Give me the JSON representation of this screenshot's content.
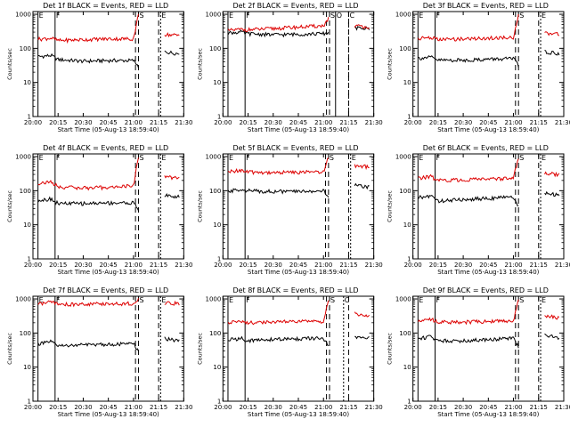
{
  "figure": {
    "background": "#ffffff",
    "colors": {
      "events": "#000000",
      "lld": "#dd0000",
      "axis": "#000000"
    }
  },
  "chart_data": [
    {
      "type": "line",
      "title": "Det 1f BLACK = Events, RED = LLD",
      "xlabel": "Start Time (05-Aug-13 18:59:40)",
      "ylabel": "Counts/sec",
      "x_tick_labels": [
        "20:00",
        "20:15",
        "20:30",
        "20:45",
        "21:00",
        "21:15",
        "21:30"
      ],
      "y_tick_labels": [
        "1",
        "10",
        "100",
        "1000"
      ],
      "y_scale": "log",
      "ylim": [
        1,
        1200
      ],
      "series": [
        {
          "color": "#000000",
          "x": [
            20.0,
            20.18,
            20.25,
            20.5,
            20.75,
            21.0,
            21.05,
            21.3,
            21.45
          ],
          "y": [
            55,
            62,
            47,
            42,
            44,
            44,
            30,
            80,
            70
          ]
        },
        {
          "color": "#dd0000",
          "x": [
            20.0,
            20.18,
            20.25,
            20.5,
            20.75,
            21.0,
            21.05,
            21.1,
            21.45
          ],
          "y": [
            180,
            200,
            170,
            180,
            190,
            190,
            1000,
            280,
            240
          ]
        }
      ],
      "annotations": [
        {
          "x": 20.05,
          "label": "E"
        },
        {
          "x": 20.22,
          "label": "F"
        },
        {
          "x": 21.05,
          "label": "S"
        },
        {
          "x": 21.27,
          "label": "E"
        }
      ]
    },
    {
      "type": "line",
      "title": "Det 2f BLACK = Events, RED = LLD",
      "xlabel": "Start Time (05-Aug-13 18:59:40)",
      "ylabel": "Counts/sec",
      "x_tick_labels": [
        "20:00",
        "20:15",
        "20:30",
        "20:45",
        "21:00",
        "21:15",
        "21:30"
      ],
      "y_tick_labels": [
        "1",
        "10",
        "100",
        "1000"
      ],
      "y_scale": "log",
      "ylim": [
        1,
        1200
      ],
      "series": [
        {
          "color": "#000000",
          "x": [
            20.0,
            20.18,
            20.25,
            20.5,
            20.75,
            21.0,
            21.08,
            21.12,
            21.45
          ],
          "y": [
            280,
            300,
            270,
            250,
            260,
            270,
            300,
            420,
            380
          ]
        },
        {
          "color": "#dd0000",
          "x": [
            20.0,
            20.18,
            20.25,
            20.5,
            20.75,
            21.0,
            21.08,
            21.12,
            21.45
          ],
          "y": [
            320,
            360,
            350,
            380,
            420,
            460,
            1000,
            500,
            430
          ]
        }
      ],
      "annotations": [
        {
          "x": 20.05,
          "label": "E"
        },
        {
          "x": 20.22,
          "label": "F"
        },
        {
          "x": 21.06,
          "label": "S"
        },
        {
          "x": 21.12,
          "label": "O"
        },
        {
          "x": 21.25,
          "label": "C"
        }
      ]
    },
    {
      "type": "line",
      "title": "Det 3f BLACK = Events, RED = LLD",
      "xlabel": "Start Time (05-Aug-13 18:59:40)",
      "ylabel": "Counts/sec",
      "x_tick_labels": [
        "20:00",
        "20:15",
        "20:30",
        "20:45",
        "21:00",
        "21:15",
        "21:30"
      ],
      "y_tick_labels": [
        "1",
        "10",
        "100",
        "1000"
      ],
      "y_scale": "log",
      "ylim": [
        1,
        1200
      ],
      "series": [
        {
          "color": "#000000",
          "x": [
            20.0,
            20.18,
            20.25,
            20.5,
            20.75,
            21.0,
            21.05,
            21.3,
            21.45
          ],
          "y": [
            50,
            55,
            45,
            45,
            48,
            50,
            30,
            80,
            70
          ]
        },
        {
          "color": "#dd0000",
          "x": [
            20.0,
            20.18,
            20.25,
            20.5,
            20.75,
            21.0,
            21.05,
            21.3,
            21.45
          ],
          "y": [
            190,
            210,
            180,
            190,
            200,
            210,
            1000,
            280,
            260
          ]
        }
      ],
      "annotations": [
        {
          "x": 20.05,
          "label": "E"
        },
        {
          "x": 20.22,
          "label": "F"
        },
        {
          "x": 21.05,
          "label": "S"
        },
        {
          "x": 21.27,
          "label": "E"
        }
      ]
    },
    {
      "type": "line",
      "title": "Det 4f BLACK = Events, RED = LLD",
      "xlabel": "Start Time (05-Aug-13 18:59:40)",
      "ylabel": "Counts/sec",
      "x_tick_labels": [
        "20:00",
        "20:15",
        "20:30",
        "20:45",
        "21:00",
        "21:15",
        "21:30"
      ],
      "y_tick_labels": [
        "1",
        "10",
        "100",
        "1000"
      ],
      "y_scale": "log",
      "ylim": [
        1,
        1200
      ],
      "series": [
        {
          "color": "#000000",
          "x": [
            20.0,
            20.18,
            20.25,
            20.5,
            20.75,
            21.0,
            21.05,
            21.3,
            21.45
          ],
          "y": [
            50,
            58,
            42,
            42,
            44,
            44,
            28,
            75,
            65
          ]
        },
        {
          "color": "#dd0000",
          "x": [
            20.0,
            20.18,
            20.25,
            20.5,
            20.75,
            21.0,
            21.05,
            21.3,
            21.45
          ],
          "y": [
            160,
            180,
            130,
            120,
            125,
            140,
            1000,
            260,
            230
          ]
        }
      ],
      "annotations": [
        {
          "x": 20.05,
          "label": "E"
        },
        {
          "x": 20.22,
          "label": "F"
        },
        {
          "x": 21.05,
          "label": "S"
        },
        {
          "x": 21.27,
          "label": "E"
        }
      ]
    },
    {
      "type": "line",
      "title": "Det 5f BLACK = Events, RED = LLD",
      "xlabel": "Start Time (05-Aug-13 18:59:40)",
      "ylabel": "Counts/sec",
      "x_tick_labels": [
        "20:00",
        "20:15",
        "20:30",
        "20:45",
        "21:00",
        "21:15",
        "21:30"
      ],
      "y_tick_labels": [
        "1",
        "10",
        "100",
        "1000"
      ],
      "y_scale": "log",
      "ylim": [
        1,
        1200
      ],
      "series": [
        {
          "color": "#000000",
          "x": [
            20.0,
            20.18,
            20.25,
            20.5,
            20.75,
            21.0,
            21.05,
            21.3,
            21.45
          ],
          "y": [
            90,
            110,
            100,
            95,
            95,
            100,
            60,
            150,
            130
          ]
        },
        {
          "color": "#dd0000",
          "x": [
            20.0,
            20.18,
            20.25,
            20.5,
            20.75,
            21.0,
            21.05,
            21.3,
            21.45
          ],
          "y": [
            350,
            400,
            350,
            340,
            350,
            360,
            1000,
            550,
            500
          ]
        }
      ],
      "annotations": [
        {
          "x": 20.05,
          "label": "E"
        },
        {
          "x": 20.22,
          "label": "F"
        },
        {
          "x": 21.05,
          "label": "S"
        },
        {
          "x": 21.27,
          "label": "E"
        }
      ]
    },
    {
      "type": "line",
      "title": "Det 6f BLACK = Events, RED = LLD",
      "xlabel": "Start Time (05-Aug-13 18:59:40)",
      "ylabel": "Counts/sec",
      "x_tick_labels": [
        "20:00",
        "20:15",
        "20:30",
        "20:45",
        "21:00",
        "21:15",
        "21:30"
      ],
      "y_tick_labels": [
        "1",
        "10",
        "100",
        "1000"
      ],
      "y_scale": "log",
      "ylim": [
        1,
        1200
      ],
      "series": [
        {
          "color": "#000000",
          "x": [
            20.0,
            20.18,
            20.25,
            20.5,
            20.75,
            21.0,
            21.05,
            21.3,
            21.45
          ],
          "y": [
            60,
            70,
            50,
            55,
            60,
            65,
            35,
            85,
            75
          ]
        },
        {
          "color": "#dd0000",
          "x": [
            20.0,
            20.18,
            20.25,
            20.5,
            20.75,
            21.0,
            21.05,
            21.3,
            21.45
          ],
          "y": [
            220,
            260,
            200,
            210,
            220,
            230,
            1000,
            330,
            300
          ]
        }
      ],
      "annotations": [
        {
          "x": 20.05,
          "label": "E"
        },
        {
          "x": 20.22,
          "label": "F"
        },
        {
          "x": 21.05,
          "label": "S"
        },
        {
          "x": 21.27,
          "label": "E"
        }
      ]
    },
    {
      "type": "line",
      "title": "Det 7f BLACK = Events, RED = LLD",
      "xlabel": "Start Time (05-Aug-13 18:59:40)",
      "ylabel": "Counts/sec",
      "x_tick_labels": [
        "20:00",
        "20:15",
        "20:30",
        "20:45",
        "21:00",
        "21:15",
        "21:30"
      ],
      "y_tick_labels": [
        "1",
        "10",
        "100",
        "1000"
      ],
      "y_scale": "log",
      "ylim": [
        1,
        1200
      ],
      "series": [
        {
          "color": "#000000",
          "x": [
            20.0,
            20.18,
            20.25,
            20.5,
            20.75,
            21.0,
            21.05,
            21.3,
            21.45
          ],
          "y": [
            45,
            55,
            42,
            45,
            47,
            48,
            30,
            70,
            60
          ]
        },
        {
          "color": "#dd0000",
          "x": [
            20.0,
            20.18,
            20.25,
            20.5,
            20.75,
            21.0,
            21.05,
            21.3,
            21.45
          ],
          "y": [
            700,
            800,
            700,
            700,
            720,
            740,
            1000,
            780,
            720
          ]
        }
      ],
      "annotations": [
        {
          "x": 20.05,
          "label": "E"
        },
        {
          "x": 20.22,
          "label": "F"
        },
        {
          "x": 21.05,
          "label": "S"
        },
        {
          "x": 21.27,
          "label": "E"
        }
      ]
    },
    {
      "type": "line",
      "title": "Det 8f BLACK = Events, RED = LLD",
      "xlabel": "Start Time (05-Aug-13 18:59:40)",
      "ylabel": "Counts/sec",
      "x_tick_labels": [
        "20:00",
        "20:15",
        "20:30",
        "20:45",
        "21:00",
        "21:15",
        "21:30"
      ],
      "y_tick_labels": [
        "1",
        "10",
        "100",
        "1000"
      ],
      "y_scale": "log",
      "ylim": [
        1,
        1200
      ],
      "series": [
        {
          "color": "#000000",
          "x": [
            20.0,
            20.18,
            20.25,
            20.5,
            20.75,
            21.0,
            21.05,
            21.3,
            21.45
          ],
          "y": [
            60,
            70,
            60,
            65,
            68,
            70,
            40,
            80,
            70
          ]
        },
        {
          "color": "#dd0000",
          "x": [
            20.0,
            20.18,
            20.25,
            20.5,
            20.75,
            21.0,
            21.05,
            21.3,
            21.45
          ],
          "y": [
            200,
            230,
            200,
            210,
            215,
            220,
            1000,
            380,
            300
          ]
        }
      ],
      "annotations": [
        {
          "x": 20.05,
          "label": "E"
        },
        {
          "x": 20.22,
          "label": "F"
        },
        {
          "x": 21.06,
          "label": "S"
        },
        {
          "x": 21.2,
          "label": "C"
        }
      ]
    },
    {
      "type": "line",
      "title": "Det 9f BLACK = Events, RED = LLD",
      "xlabel": "Start Time (05-Aug-13 18:59:40)",
      "ylabel": "Counts/sec",
      "x_tick_labels": [
        "20:00",
        "20:15",
        "20:30",
        "20:45",
        "21:00",
        "21:15",
        "21:30"
      ],
      "y_tick_labels": [
        "1",
        "10",
        "100",
        "1000"
      ],
      "y_scale": "log",
      "ylim": [
        1,
        1200
      ],
      "series": [
        {
          "color": "#000000",
          "x": [
            20.0,
            20.18,
            20.25,
            20.5,
            20.75,
            21.0,
            21.05,
            21.3,
            21.45
          ],
          "y": [
            65,
            80,
            60,
            60,
            65,
            70,
            40,
            85,
            75
          ]
        },
        {
          "color": "#dd0000",
          "x": [
            20.0,
            20.18,
            20.25,
            20.5,
            20.75,
            21.0,
            21.05,
            21.3,
            21.45
          ],
          "y": [
            220,
            260,
            210,
            210,
            220,
            230,
            1000,
            320,
            280
          ]
        }
      ],
      "annotations": [
        {
          "x": 20.05,
          "label": "E"
        },
        {
          "x": 20.22,
          "label": "F"
        },
        {
          "x": 21.05,
          "label": "S"
        },
        {
          "x": 21.27,
          "label": "E"
        }
      ]
    }
  ]
}
